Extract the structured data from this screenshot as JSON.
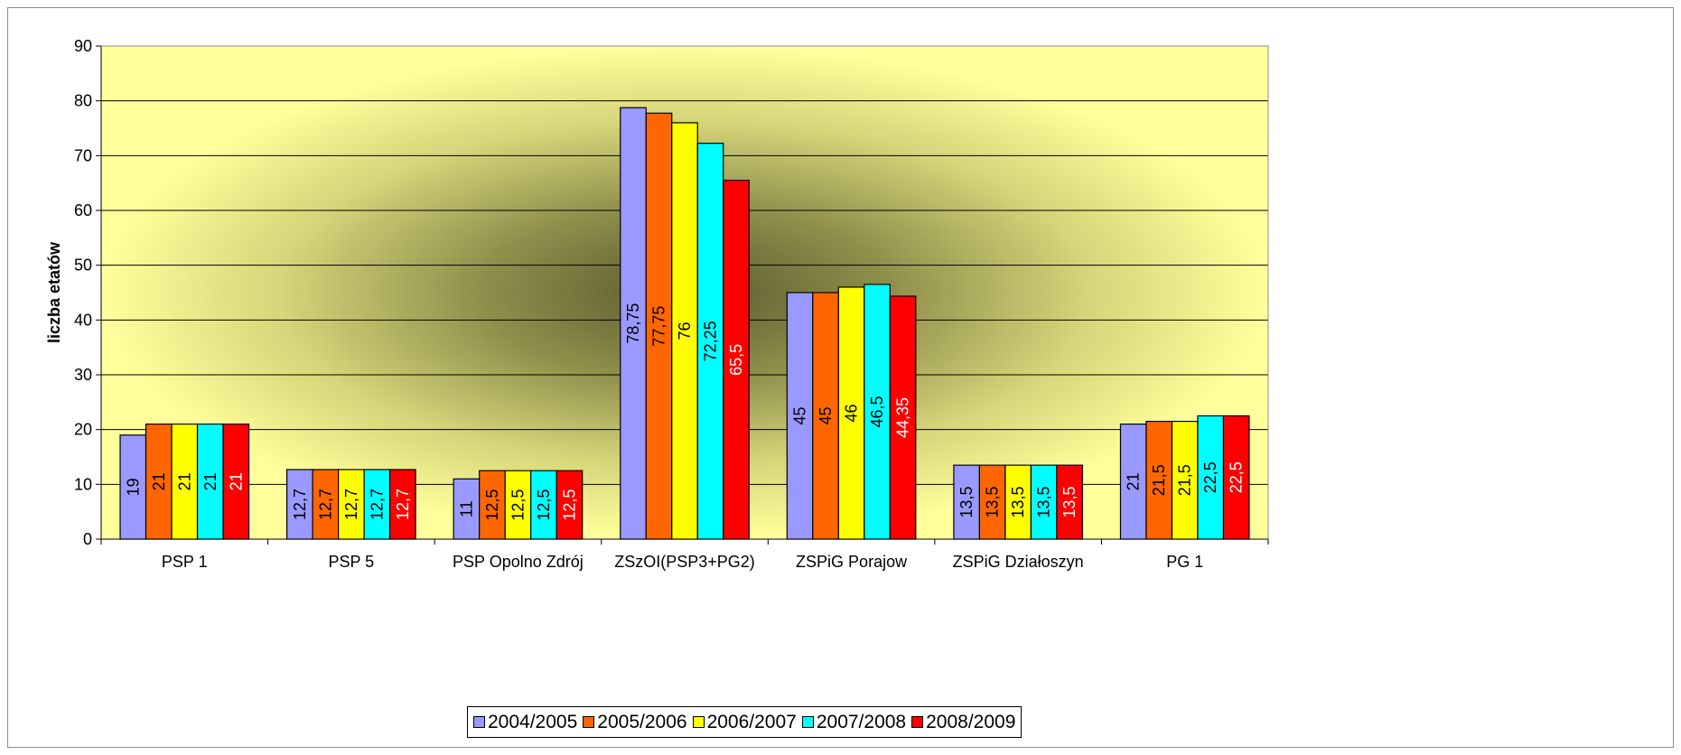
{
  "chart_data": {
    "type": "bar",
    "title": "",
    "xlabel": "",
    "ylabel": "liczba etatów",
    "ylim": [
      0,
      90
    ],
    "yticks": [
      0,
      10,
      20,
      30,
      40,
      50,
      60,
      70,
      80,
      90
    ],
    "grid": true,
    "legend_position": "bottom",
    "categories": [
      "PSP 1",
      "PSP 5",
      "PSP Opolno Zdrój",
      "ZSzOI(PSP3+PG2)",
      "ZSPiG Porajow",
      "ZSPiG Działoszyn",
      "PG 1"
    ],
    "series": [
      {
        "name": "2004/2005",
        "color": "#9999ff",
        "label_color": "#000000",
        "values": [
          19,
          12.7,
          11,
          78.75,
          45,
          13.5,
          21
        ],
        "labels": [
          "19",
          "12,7",
          "11",
          "78,75",
          "45",
          "13,5",
          "21"
        ]
      },
      {
        "name": "2005/2006",
        "color": "#ff6600",
        "label_color": "#000000",
        "values": [
          21,
          12.7,
          12.5,
          77.75,
          45,
          13.5,
          21.5
        ],
        "labels": [
          "21",
          "12,7",
          "12,5",
          "77,75",
          "45",
          "13,5",
          "21,5"
        ]
      },
      {
        "name": "2006/2007",
        "color": "#ffff00",
        "label_color": "#000000",
        "values": [
          21,
          12.7,
          12.5,
          76,
          46,
          13.5,
          21.5
        ],
        "labels": [
          "21",
          "12,7",
          "12,5",
          "76",
          "46",
          "13,5",
          "21,5"
        ]
      },
      {
        "name": "2007/2008",
        "color": "#00ffff",
        "label_color": "#000000",
        "values": [
          21,
          12.7,
          12.5,
          72.25,
          46.5,
          13.5,
          22.5
        ],
        "labels": [
          "21",
          "12,7",
          "12,5",
          "72,25",
          "46,5",
          "13,5",
          "22,5"
        ]
      },
      {
        "name": "2008/2009",
        "color": "#ff0000",
        "label_color": "#ffffff",
        "values": [
          21,
          12.7,
          12.5,
          65.5,
          44.35,
          13.5,
          22.5
        ],
        "labels": [
          "21",
          "12,7",
          "12,5",
          "65,5",
          "44,35",
          "13,5",
          "22,5"
        ]
      }
    ],
    "plot_background": "radial gradient, olive center to light yellow edges",
    "colors": {
      "plot_center": "#5a5a2e",
      "plot_edge": "#ffff9c",
      "bar_border": "#000000"
    }
  }
}
